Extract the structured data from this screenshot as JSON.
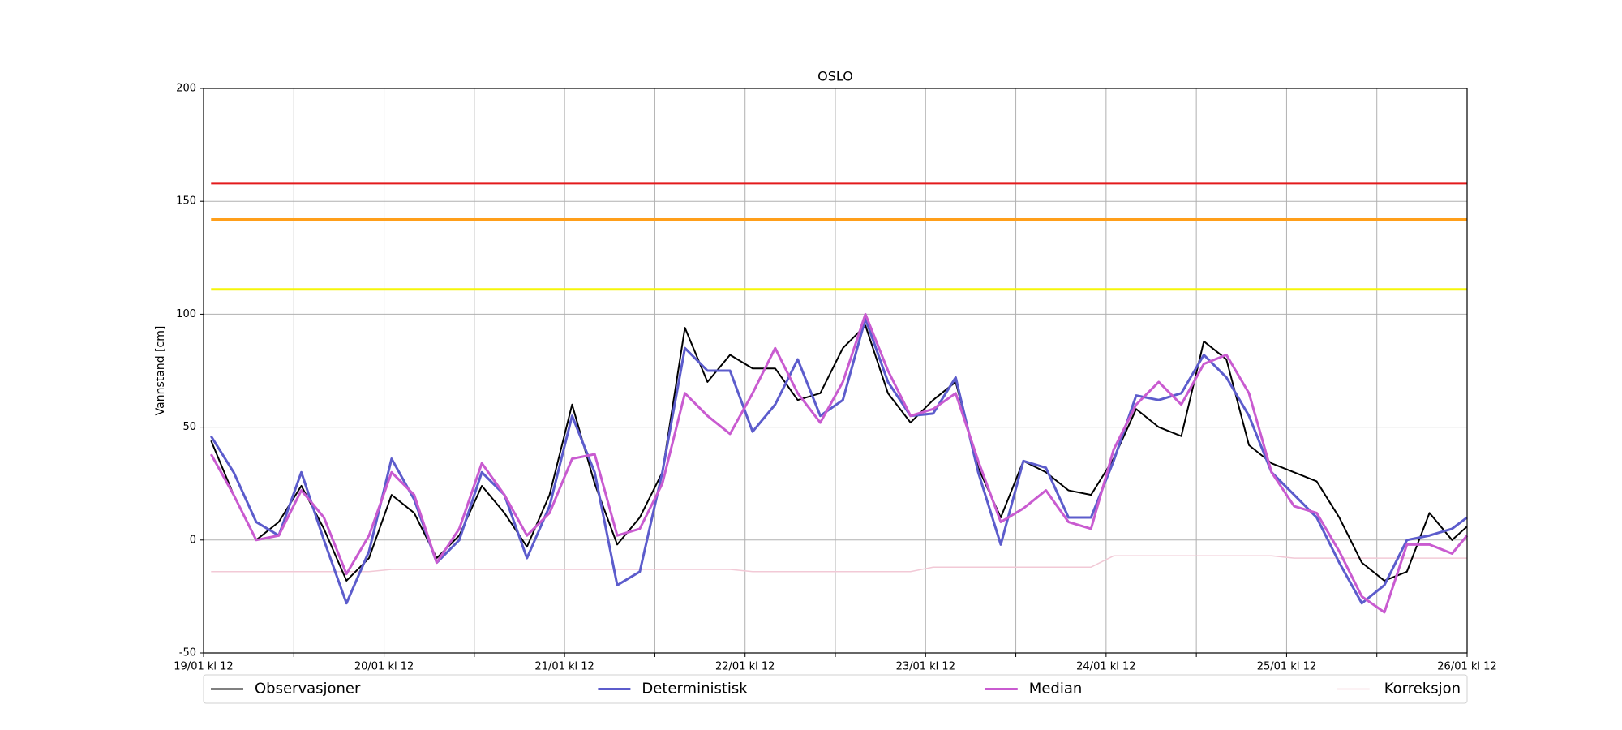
{
  "chart_data": {
    "type": "line",
    "title": "OSLO",
    "y_label": "Vannstand [cm]",
    "x": [
      1,
      4,
      7,
      10,
      13,
      16,
      19,
      22,
      25,
      28,
      31,
      34,
      37,
      40,
      43,
      46,
      49,
      52,
      55,
      58,
      61,
      64,
      67,
      70,
      73,
      76,
      79,
      82,
      85,
      88,
      91,
      94,
      97,
      100,
      103,
      106,
      109,
      112,
      115,
      118,
      121,
      124,
      127,
      130,
      133,
      136,
      139,
      142,
      145,
      148,
      151,
      154,
      157,
      160,
      163,
      166,
      168
    ],
    "xlim": [
      0,
      168
    ],
    "xticks": [
      {
        "value": 0,
        "label": "19/01 kl 12"
      },
      {
        "value": 12,
        "label": null
      },
      {
        "value": 24,
        "label": "20/01 kl 12"
      },
      {
        "value": 36,
        "label": null
      },
      {
        "value": 48,
        "label": "21/01 kl 12"
      },
      {
        "value": 60,
        "label": null
      },
      {
        "value": 72,
        "label": "22/01 kl 12"
      },
      {
        "value": 84,
        "label": null
      },
      {
        "value": 96,
        "label": "23/01 kl 12"
      },
      {
        "value": 108,
        "label": null
      },
      {
        "value": 120,
        "label": "24/01 kl 12"
      },
      {
        "value": 132,
        "label": null
      },
      {
        "value": 144,
        "label": "25/01 kl 12"
      },
      {
        "value": 156,
        "label": null
      },
      {
        "value": 168,
        "label": "26/01 kl 12"
      }
    ],
    "ylim": [
      -50,
      200
    ],
    "yticks": [
      -50,
      0,
      50,
      100,
      150,
      200
    ],
    "grid": true,
    "legend": "below",
    "thresholds": [
      {
        "value": 158,
        "color": "#e31a1c"
      },
      {
        "value": 142,
        "color": "#ff9f1a"
      },
      {
        "value": 111,
        "color": "#f5f50a"
      }
    ],
    "series": [
      {
        "name": "Observasjoner",
        "color": "#000000",
        "width": 2,
        "values": [
          44,
          20,
          0,
          8,
          24,
          5,
          -18,
          -8,
          20,
          12,
          -8,
          2,
          24,
          12,
          -3,
          20,
          60,
          25,
          -2,
          10,
          30,
          94,
          70,
          82,
          76,
          76,
          62,
          65,
          85,
          95,
          65,
          52,
          62,
          70,
          32,
          10,
          35,
          30,
          22,
          20,
          36,
          58,
          50,
          46,
          88,
          80,
          42,
          34,
          30,
          26,
          10,
          -10,
          -18,
          -14,
          12,
          0,
          6
        ]
      },
      {
        "name": "Deterministisk",
        "color": "#5c5ccc",
        "width": 3,
        "values": [
          46,
          30,
          8,
          2,
          30,
          0,
          -28,
          -5,
          36,
          18,
          -10,
          0,
          30,
          20,
          -8,
          15,
          55,
          30,
          -20,
          -14,
          30,
          85,
          75,
          75,
          48,
          60,
          80,
          55,
          62,
          98,
          70,
          55,
          56,
          72,
          30,
          -2,
          35,
          32,
          10,
          10,
          35,
          64,
          62,
          65,
          82,
          72,
          55,
          30,
          20,
          10,
          -10,
          -28,
          -20,
          0,
          2,
          5,
          10
        ]
      },
      {
        "name": "Median",
        "color": "#c95bd0",
        "width": 3,
        "values": [
          38,
          20,
          0,
          2,
          22,
          10,
          -15,
          2,
          30,
          20,
          -10,
          5,
          34,
          20,
          2,
          12,
          36,
          38,
          2,
          5,
          25,
          65,
          55,
          47,
          65,
          85,
          65,
          52,
          70,
          100,
          75,
          55,
          58,
          65,
          35,
          8,
          14,
          22,
          8,
          5,
          40,
          60,
          70,
          60,
          78,
          82,
          65,
          30,
          15,
          12,
          -5,
          -25,
          -32,
          -2,
          -2,
          -6,
          2
        ]
      },
      {
        "name": "Korreksjon",
        "color": "#f2c9d6",
        "width": 1.5,
        "values": [
          -14,
          -14,
          -14,
          -14,
          -14,
          -14,
          -14,
          -14,
          -13,
          -13,
          -13,
          -13,
          -13,
          -13,
          -13,
          -13,
          -13,
          -13,
          -13,
          -13,
          -13,
          -13,
          -13,
          -13,
          -14,
          -14,
          -14,
          -14,
          -14,
          -14,
          -14,
          -14,
          -12,
          -12,
          -12,
          -12,
          -12,
          -12,
          -12,
          -12,
          -7,
          -7,
          -7,
          -7,
          -7,
          -7,
          -7,
          -7,
          -8,
          -8,
          -8,
          -8,
          -8,
          -8,
          -8,
          -8,
          -8
        ]
      }
    ]
  }
}
